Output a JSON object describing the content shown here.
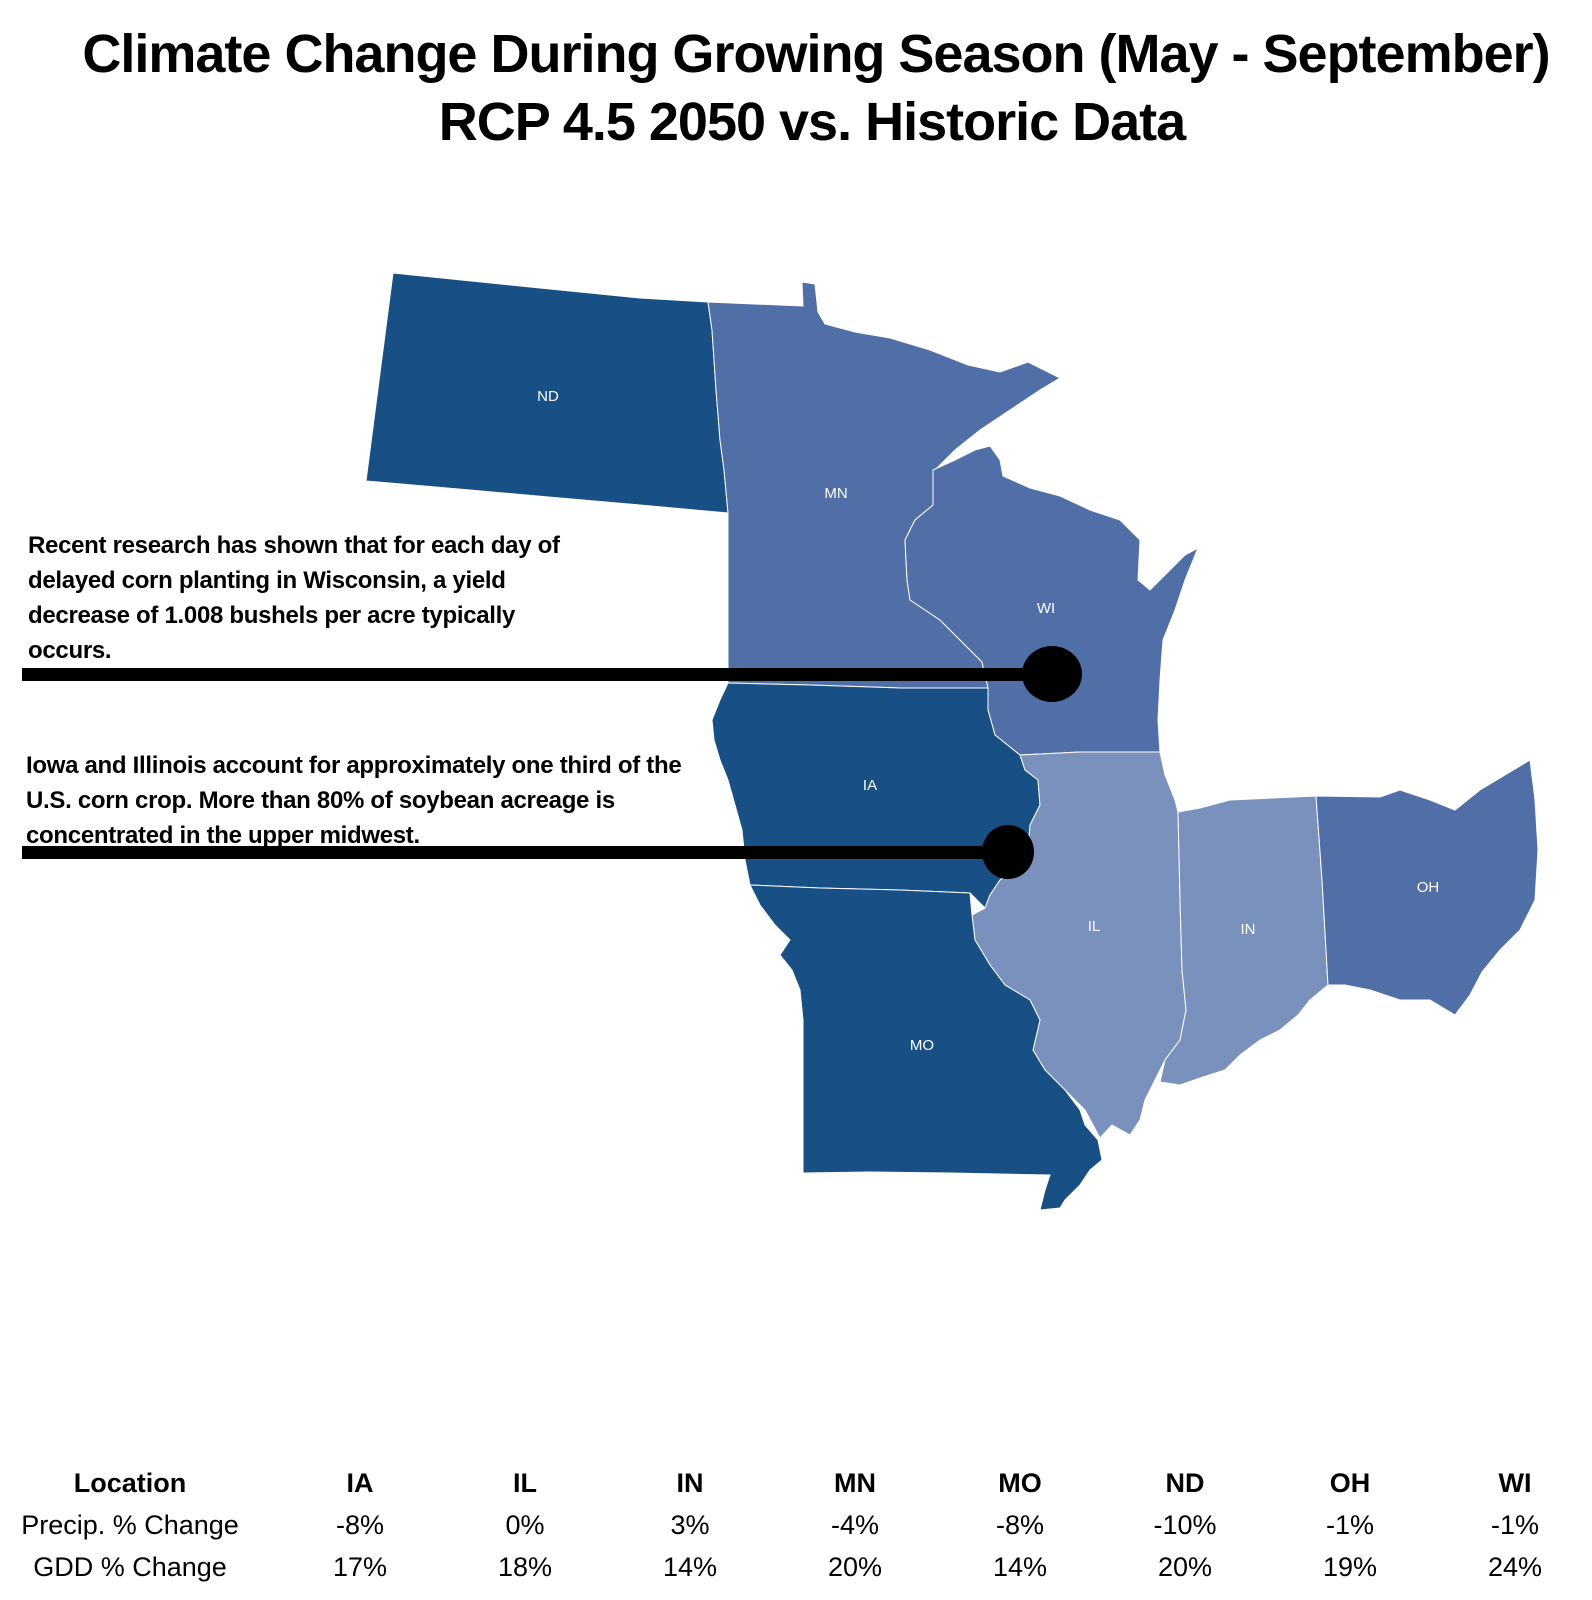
{
  "title": {
    "line1": "Climate Change During Growing Season (May - September)",
    "line2": "RCP 4.5 2050 vs. Historic Data"
  },
  "notes": {
    "wisconsin": "Recent research has shown that for each day of delayed corn planting in Wisconsin, a yield decrease of 1.008 bushels per acre typically occurs.",
    "iowa_illinois": "Iowa and Illinois account for approximately one third of the U.S. corn crop. More than 80% of soybean acreage is concentrated in the upper midwest."
  },
  "states": [
    {
      "abbr": "ND",
      "color": "#184f85"
    },
    {
      "abbr": "MN",
      "color": "#4f6fa6"
    },
    {
      "abbr": "WI",
      "color": "#4f6fa6"
    },
    {
      "abbr": "IA",
      "color": "#184f85"
    },
    {
      "abbr": "IL",
      "color": "#7b91bd"
    },
    {
      "abbr": "IN",
      "color": "#7b91bd"
    },
    {
      "abbr": "OH",
      "color": "#4f6fa6"
    },
    {
      "abbr": "MO",
      "color": "#184f85"
    }
  ],
  "table": {
    "headers": [
      "Location",
      "IA",
      "IL",
      "IN",
      "MN",
      "MO",
      "ND",
      "OH",
      "WI"
    ],
    "rows": [
      {
        "label": "Precip. % Change",
        "values": [
          "-8%",
          "0%",
          "3%",
          "-4%",
          "-8%",
          "-10%",
          "-1%",
          "-1%"
        ]
      },
      {
        "label": "GDD % Change",
        "values": [
          "17%",
          "18%",
          "14%",
          "20%",
          "14%",
          "20%",
          "19%",
          "24%"
        ]
      }
    ]
  }
}
